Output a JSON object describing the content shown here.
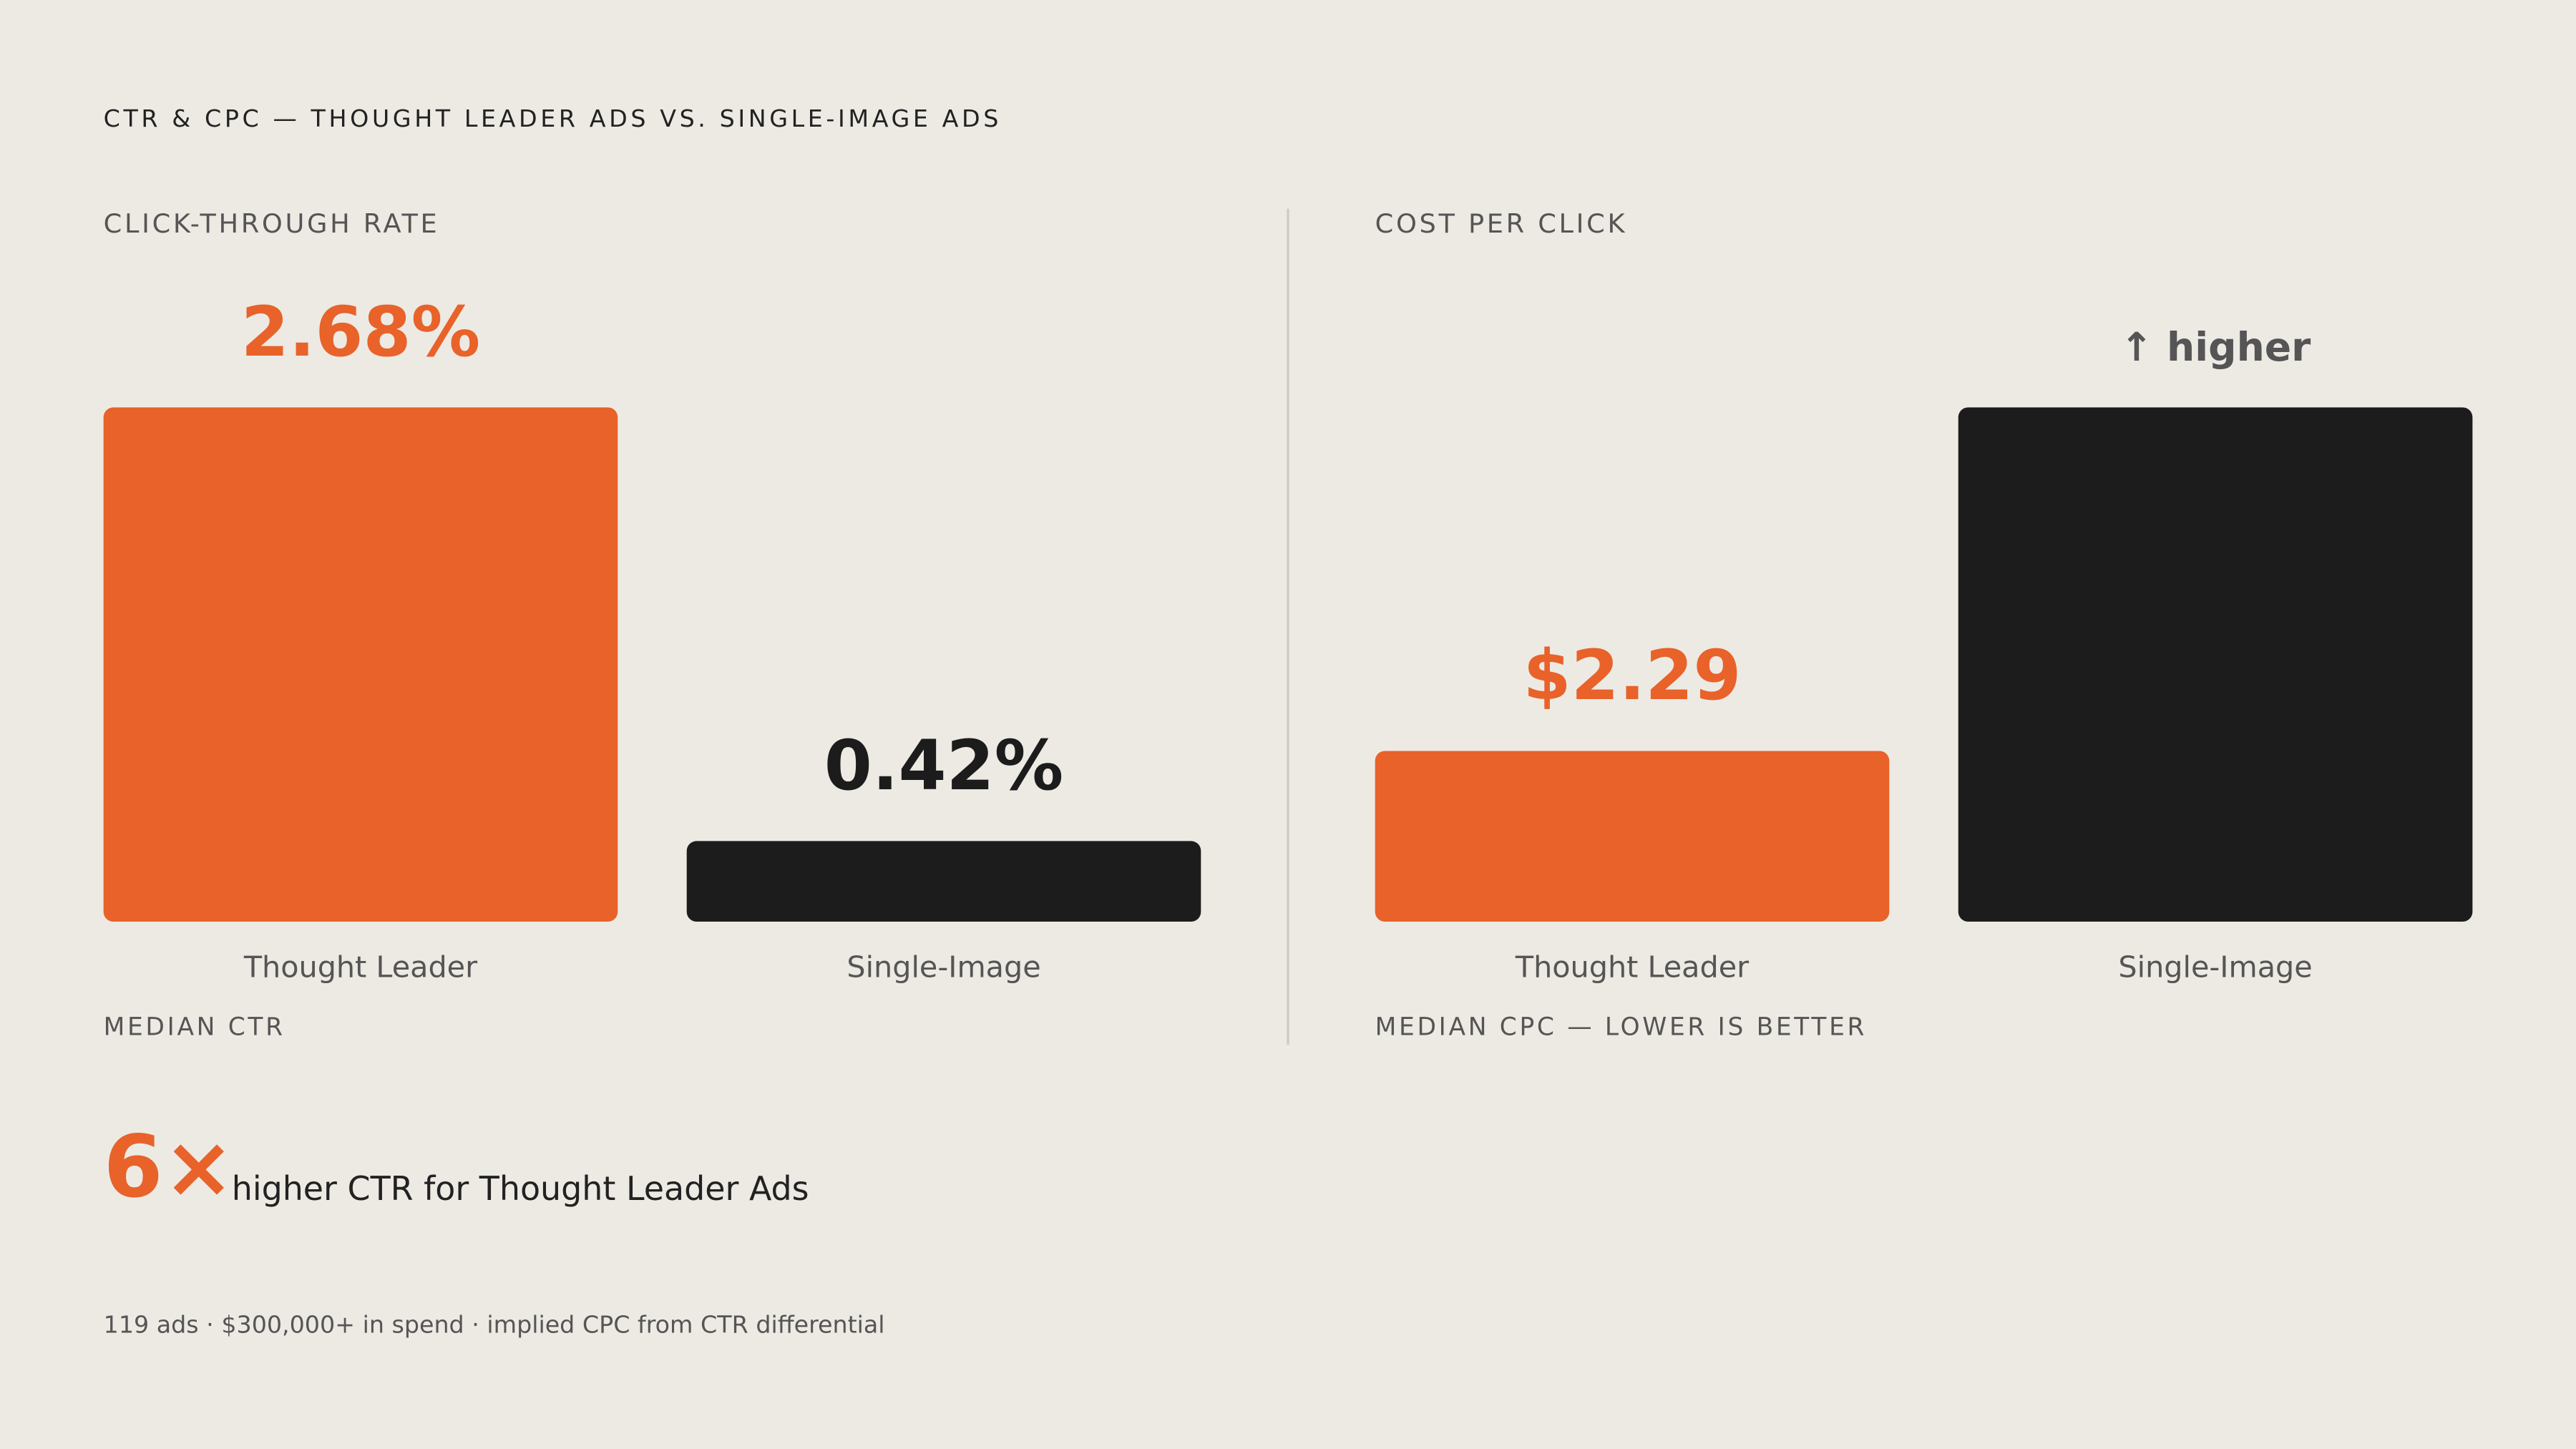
{
  "title": "CTR & CPC — THOUGHT LEADER ADS VS. SINGLE-IMAGE ADS",
  "chart_data": [
    {
      "type": "bar",
      "title": "CLICK-THROUGH RATE",
      "caption": "MEDIAN CTR",
      "categories": [
        "Thought Leader",
        "Single-Image"
      ],
      "values": [
        2.68,
        0.42
      ],
      "value_labels": [
        "2.68%",
        "0.42%"
      ],
      "colors": [
        "#e8622a",
        "#1c1c1c"
      ],
      "label_colors": [
        "#e8622a",
        "#1c1c1c"
      ]
    },
    {
      "type": "bar",
      "title": "COST PER CLICK",
      "caption": "MEDIAN CPC — LOWER IS BETTER",
      "categories": [
        "Thought Leader",
        "Single-Image"
      ],
      "values": [
        2.29,
        6.9
      ],
      "value_labels": [
        "$2.29",
        null
      ],
      "annotation": "↑ higher",
      "colors": [
        "#e8622a",
        "#1c1c1c"
      ],
      "label_colors": [
        "#e8622a",
        "#1c1c1c"
      ]
    }
  ],
  "callout": {
    "figure": "6×",
    "text": "higher CTR for Thought Leader Ads"
  },
  "footnote": "119 ads · $300,000+ in spend · implied CPC from CTR differential"
}
